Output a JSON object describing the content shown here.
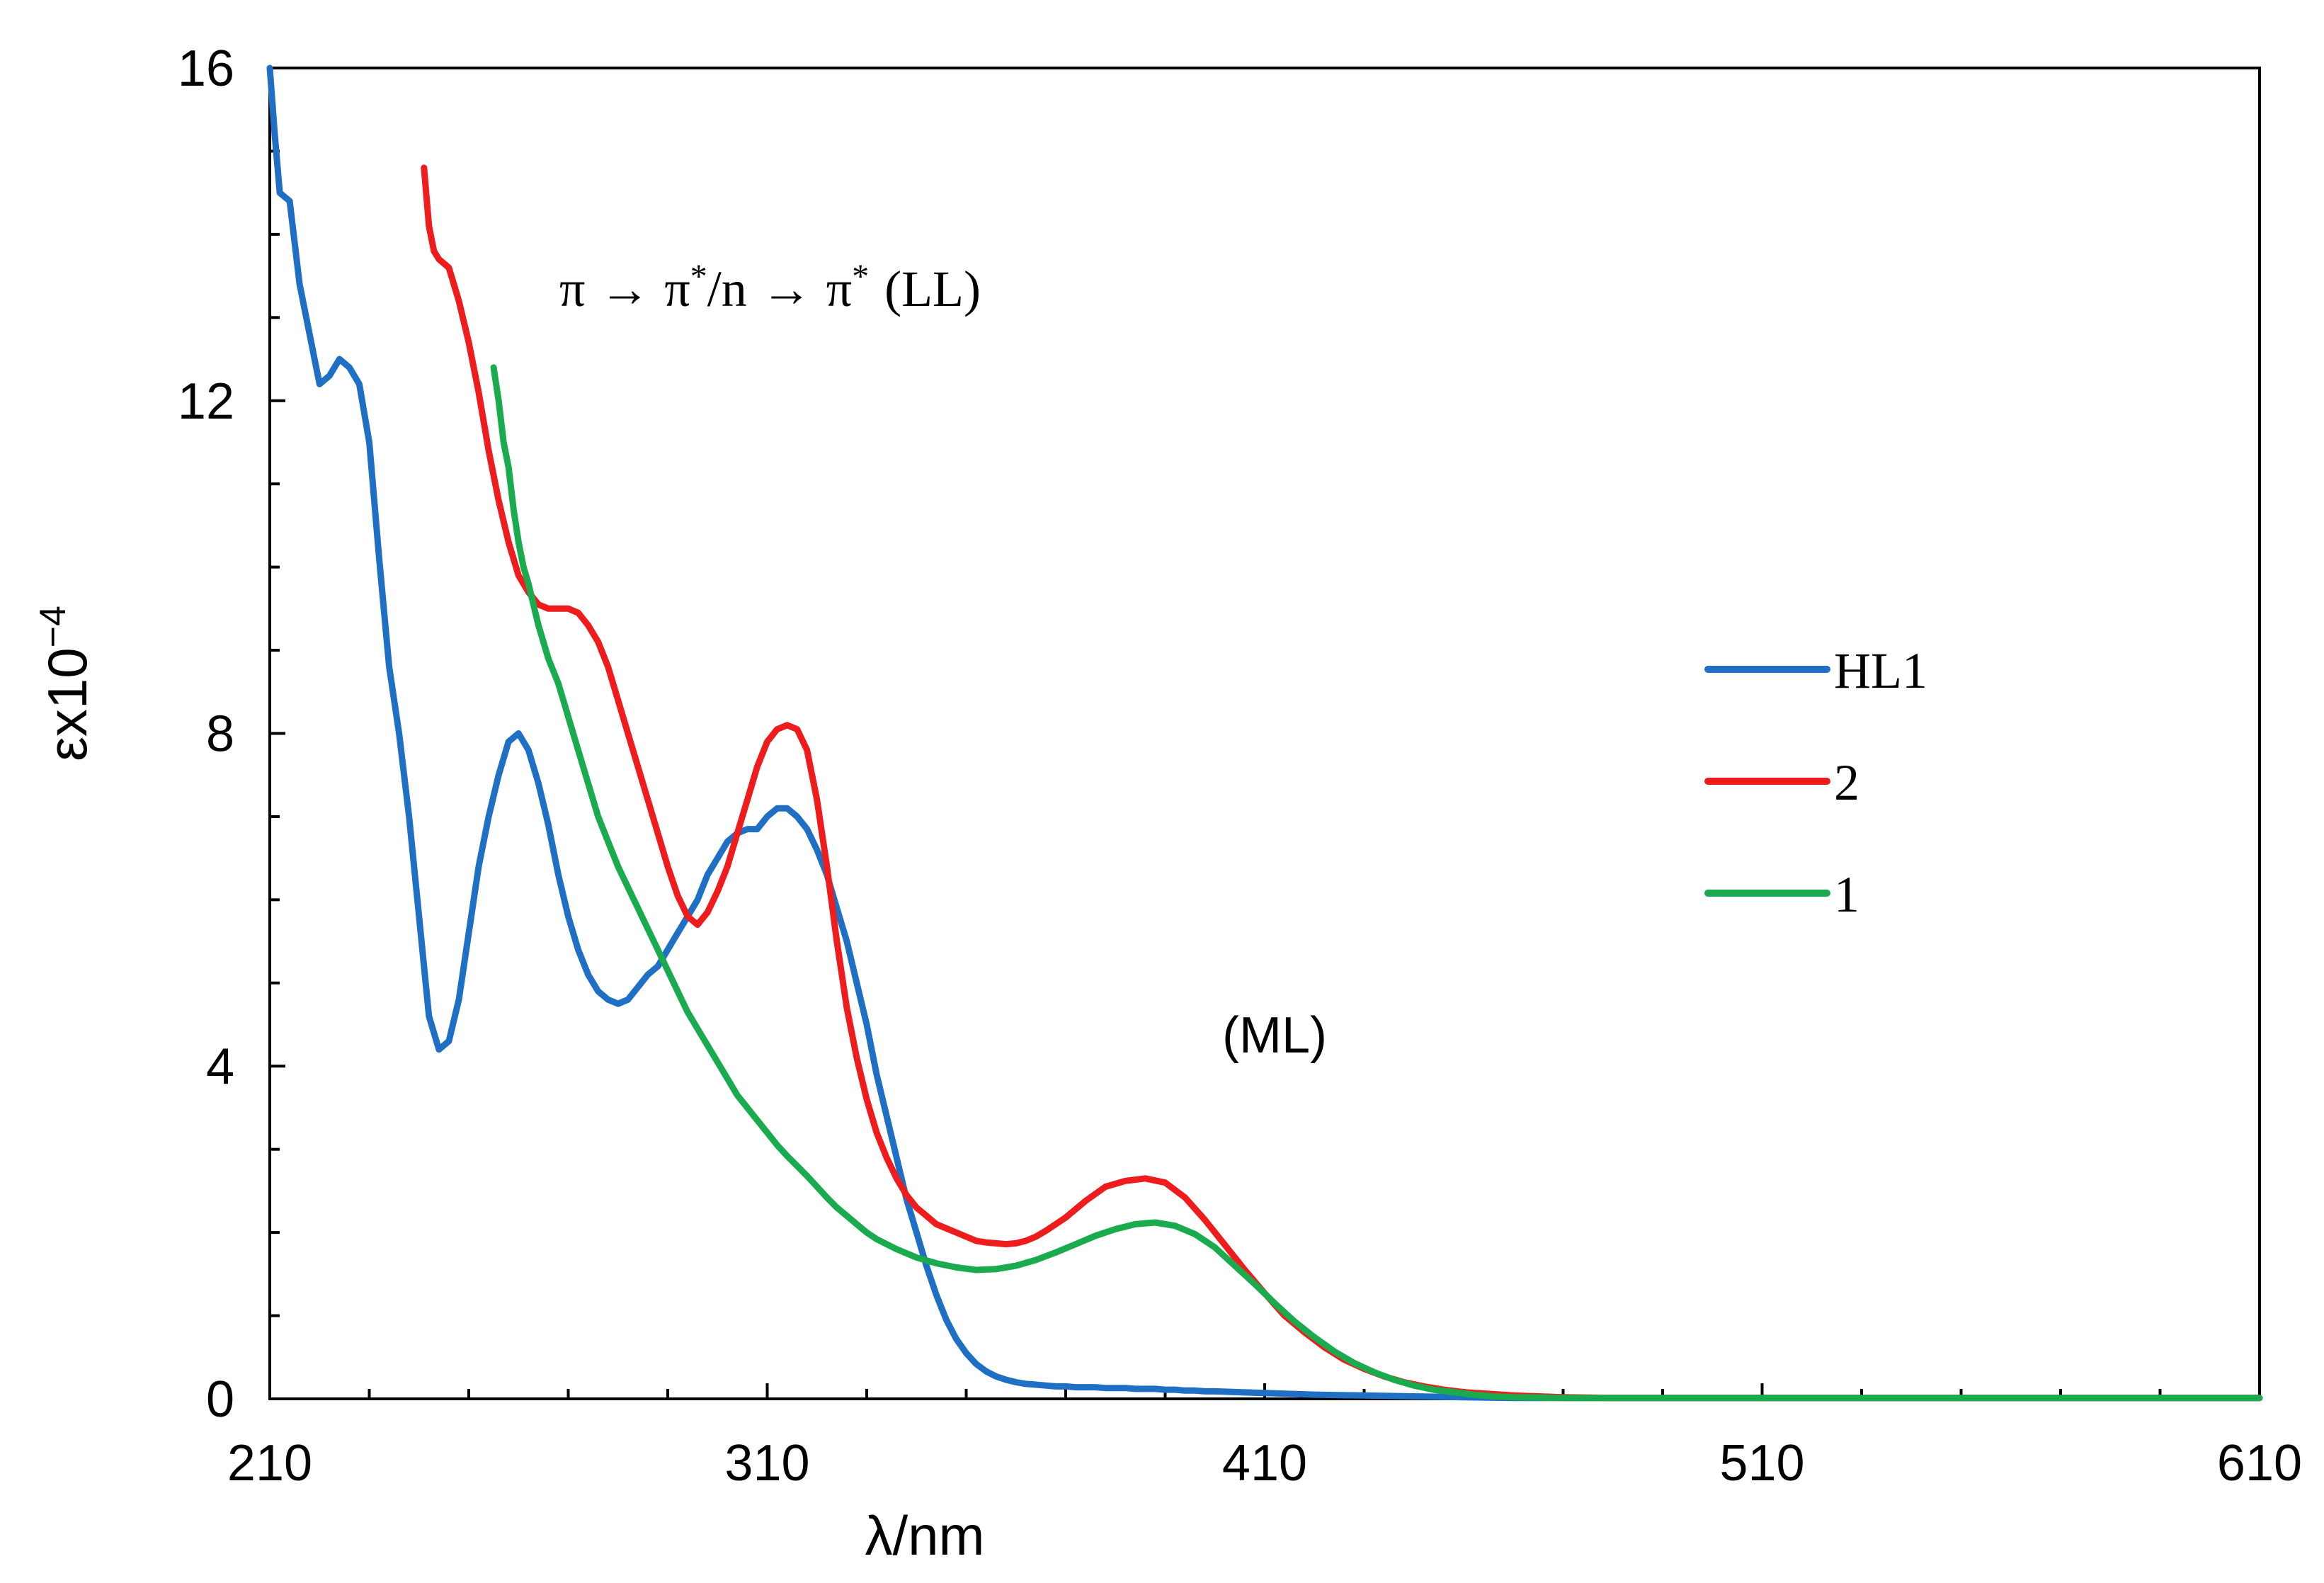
{
  "chart_data": {
    "type": "line",
    "title": "",
    "xlabel": "λ/nm",
    "ylabel": "εx10",
    "ylabel_exponent": "−4",
    "xlim": [
      210,
      610
    ],
    "ylim": [
      0,
      16
    ],
    "xticks": [
      210,
      310,
      410,
      510,
      610
    ],
    "yticks": [
      0,
      4,
      8,
      12,
      16
    ],
    "grid": false,
    "legend_position": "right",
    "annotations": {
      "ll_pi": "π",
      "ll_arrow": "→",
      "ll_star": "*",
      "ll_n": "/n",
      "ll_tag": "(LL)",
      "ml": "(ML)"
    },
    "series": [
      {
        "name": "HL1",
        "color": "#1f6fc5",
        "x": [
          210,
          211,
          212,
          214,
          216,
          218,
          219,
          220,
          222,
          224,
          226,
          228,
          230,
          232,
          234,
          236,
          238,
          240,
          242,
          244,
          246,
          248,
          250,
          252,
          254,
          256,
          258,
          260,
          262,
          264,
          266,
          268,
          270,
          272,
          274,
          276,
          278,
          280,
          282,
          284,
          286,
          288,
          290,
          292,
          294,
          296,
          298,
          300,
          302,
          304,
          306,
          308,
          310,
          312,
          314,
          316,
          318,
          320,
          322,
          324,
          326,
          328,
          330,
          332,
          334,
          336,
          338,
          340,
          342,
          344,
          346,
          348,
          350,
          352,
          354,
          356,
          358,
          360,
          362,
          364,
          366,
          368,
          370,
          372,
          374,
          376,
          378,
          380,
          382,
          384,
          386,
          388,
          390,
          392,
          394,
          396,
          398,
          400,
          405,
          410,
          420,
          430,
          440,
          450,
          460,
          470,
          480,
          490,
          500,
          520,
          540,
          560,
          580,
          610
        ],
        "y": [
          16.0,
          15.2,
          14.5,
          14.4,
          13.4,
          12.8,
          12.5,
          12.2,
          12.3,
          12.5,
          12.4,
          12.2,
          11.5,
          10.1,
          8.8,
          8.0,
          7.0,
          5.8,
          4.6,
          4.2,
          4.3,
          4.8,
          5.6,
          6.4,
          7.0,
          7.5,
          7.9,
          8.0,
          7.8,
          7.4,
          6.9,
          6.3,
          5.8,
          5.4,
          5.1,
          4.9,
          4.8,
          4.75,
          4.8,
          4.95,
          5.1,
          5.2,
          5.4,
          5.6,
          5.8,
          6.0,
          6.3,
          6.5,
          6.7,
          6.8,
          6.85,
          6.85,
          7.0,
          7.1,
          7.1,
          7.0,
          6.85,
          6.6,
          6.3,
          5.9,
          5.5,
          5.0,
          4.5,
          3.9,
          3.4,
          2.9,
          2.4,
          2.0,
          1.6,
          1.25,
          0.95,
          0.72,
          0.55,
          0.42,
          0.33,
          0.27,
          0.23,
          0.2,
          0.18,
          0.17,
          0.16,
          0.15,
          0.15,
          0.14,
          0.14,
          0.14,
          0.13,
          0.13,
          0.13,
          0.12,
          0.12,
          0.12,
          0.11,
          0.11,
          0.1,
          0.1,
          0.09,
          0.09,
          0.08,
          0.07,
          0.05,
          0.04,
          0.03,
          0.02,
          0.01,
          0.01,
          0.01,
          0.01,
          0.01,
          0.01,
          0.01,
          0.01,
          0.01,
          0.01
        ]
      },
      {
        "name": "2",
        "color": "#ee1c1c",
        "x": [
          241,
          242,
          243,
          244,
          246,
          248,
          250,
          252,
          254,
          256,
          258,
          260,
          262,
          264,
          266,
          268,
          270,
          272,
          274,
          276,
          278,
          280,
          282,
          284,
          286,
          288,
          290,
          292,
          294,
          296,
          298,
          300,
          302,
          304,
          306,
          308,
          310,
          312,
          314,
          316,
          318,
          320,
          322,
          324,
          326,
          328,
          330,
          332,
          334,
          336,
          338,
          340,
          342,
          344,
          346,
          348,
          350,
          352,
          354,
          356,
          358,
          360,
          362,
          364,
          366,
          368,
          370,
          374,
          378,
          382,
          386,
          390,
          394,
          398,
          402,
          406,
          410,
          414,
          418,
          422,
          426,
          430,
          434,
          438,
          442,
          446,
          450,
          460,
          470,
          480,
          490,
          500,
          520,
          540,
          560,
          580,
          610
        ],
        "y": [
          14.8,
          14.1,
          13.8,
          13.7,
          13.6,
          13.2,
          12.7,
          12.1,
          11.4,
          10.8,
          10.3,
          9.9,
          9.7,
          9.55,
          9.5,
          9.5,
          9.5,
          9.45,
          9.3,
          9.1,
          8.8,
          8.4,
          8.0,
          7.6,
          7.2,
          6.8,
          6.4,
          6.05,
          5.8,
          5.7,
          5.85,
          6.1,
          6.4,
          6.8,
          7.2,
          7.6,
          7.9,
          8.05,
          8.1,
          8.05,
          7.8,
          7.2,
          6.4,
          5.5,
          4.7,
          4.1,
          3.6,
          3.2,
          2.9,
          2.65,
          2.45,
          2.3,
          2.2,
          2.1,
          2.05,
          2.0,
          1.95,
          1.9,
          1.88,
          1.87,
          1.86,
          1.87,
          1.9,
          1.95,
          2.02,
          2.1,
          2.18,
          2.38,
          2.55,
          2.62,
          2.65,
          2.6,
          2.42,
          2.15,
          1.85,
          1.55,
          1.27,
          1.0,
          0.8,
          0.62,
          0.47,
          0.36,
          0.27,
          0.2,
          0.15,
          0.11,
          0.08,
          0.04,
          0.02,
          0.01,
          0.01,
          0.01,
          0.01,
          0.01,
          0.01,
          0.01,
          0.01
        ]
      },
      {
        "name": "1",
        "color": "#1aab4e",
        "x": [
          255,
          256,
          257,
          258,
          259,
          260,
          261,
          262,
          263,
          264,
          265,
          266,
          268,
          270,
          272,
          274,
          276,
          278,
          280,
          282,
          284,
          286,
          288,
          290,
          292,
          294,
          296,
          298,
          300,
          302,
          304,
          306,
          308,
          310,
          312,
          314,
          316,
          318,
          320,
          322,
          324,
          326,
          328,
          330,
          332,
          334,
          336,
          338,
          340,
          344,
          348,
          352,
          356,
          360,
          364,
          368,
          372,
          376,
          380,
          384,
          388,
          392,
          396,
          400,
          404,
          408,
          412,
          416,
          420,
          424,
          428,
          432,
          436,
          440,
          444,
          448,
          452,
          456,
          460,
          470,
          480,
          490,
          500,
          520,
          540,
          560,
          580,
          610
        ],
        "y": [
          12.4,
          12.0,
          11.5,
          11.2,
          10.7,
          10.3,
          10.0,
          9.8,
          9.55,
          9.3,
          9.1,
          8.9,
          8.6,
          8.2,
          7.8,
          7.4,
          7.0,
          6.7,
          6.4,
          6.15,
          5.9,
          5.65,
          5.4,
          5.15,
          4.9,
          4.65,
          4.45,
          4.25,
          4.05,
          3.85,
          3.65,
          3.5,
          3.35,
          3.2,
          3.05,
          2.92,
          2.8,
          2.68,
          2.55,
          2.42,
          2.3,
          2.2,
          2.1,
          2.0,
          1.92,
          1.86,
          1.8,
          1.75,
          1.7,
          1.63,
          1.58,
          1.55,
          1.56,
          1.6,
          1.67,
          1.76,
          1.86,
          1.96,
          2.04,
          2.1,
          2.12,
          2.08,
          1.98,
          1.82,
          1.6,
          1.38,
          1.15,
          0.93,
          0.74,
          0.57,
          0.43,
          0.32,
          0.23,
          0.16,
          0.11,
          0.08,
          0.05,
          0.03,
          0.02,
          0.01,
          0.01,
          0.01,
          0.01,
          0.01,
          0.01,
          0.01,
          0.01,
          0.01
        ]
      }
    ]
  }
}
